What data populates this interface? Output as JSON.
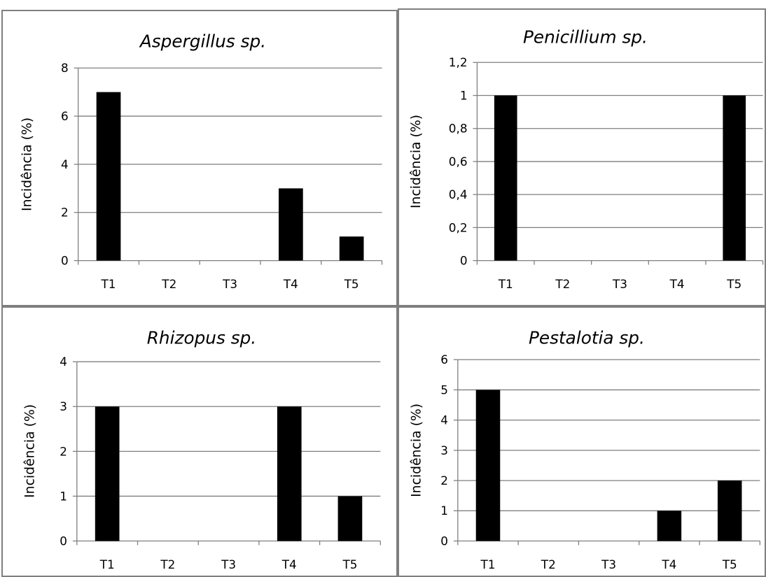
{
  "colors": {
    "bar": "#000000",
    "gridline": "#7f7f7f",
    "axis": "#7f7f7f",
    "panel_border": "#7f7f7f",
    "background": "#ffffff"
  },
  "chart_data": [
    {
      "type": "bar",
      "title": "Aspergillus sp.",
      "ylabel": "Incidência (%)",
      "xlabel": "",
      "categories": [
        "T1",
        "T2",
        "T3",
        "T4",
        "T5"
      ],
      "values": [
        7,
        0,
        0,
        3,
        1
      ],
      "ylim": [
        0,
        8
      ],
      "yticks": [
        0,
        2,
        4,
        6,
        8
      ],
      "ytick_labels": [
        "0",
        "2",
        "4",
        "6",
        "8"
      ],
      "grid": true,
      "legend": "none"
    },
    {
      "type": "bar",
      "title": "Penicillium sp.",
      "ylabel": "Incidência (%)",
      "xlabel": "",
      "categories": [
        "T1",
        "T2",
        "T3",
        "T4",
        "T5"
      ],
      "values": [
        1,
        0,
        0,
        0,
        1
      ],
      "ylim": [
        0,
        1.2
      ],
      "yticks": [
        0,
        0.2,
        0.4,
        0.6,
        0.8,
        1,
        1.2
      ],
      "ytick_labels": [
        "0",
        "0,2",
        "0,4",
        "0,6",
        "0,8",
        "1",
        "1,2"
      ],
      "grid": true,
      "legend": "none"
    },
    {
      "type": "bar",
      "title": "Rhizopus sp.",
      "ylabel": "Incidência (%)",
      "xlabel": "",
      "categories": [
        "T1",
        "T2",
        "T3",
        "T4",
        "T5"
      ],
      "values": [
        3,
        0,
        0,
        3,
        1
      ],
      "ylim": [
        0,
        4
      ],
      "yticks": [
        0,
        1,
        2,
        3,
        4
      ],
      "ytick_labels": [
        "0",
        "1",
        "2",
        "3",
        "4"
      ],
      "grid": true,
      "legend": "none"
    },
    {
      "type": "bar",
      "title": "Pestalotia sp.",
      "ylabel": "Incidência (%)",
      "xlabel": "",
      "categories": [
        "T1",
        "T2",
        "T3",
        "T4",
        "T5"
      ],
      "values": [
        5,
        0,
        0,
        1,
        2
      ],
      "ylim": [
        0,
        6
      ],
      "yticks": [
        0,
        1,
        2,
        3,
        4,
        5,
        6
      ],
      "ytick_labels": [
        "0",
        "1",
        "2",
        "3",
        "4",
        "5",
        "6"
      ],
      "grid": true,
      "legend": "none"
    }
  ]
}
